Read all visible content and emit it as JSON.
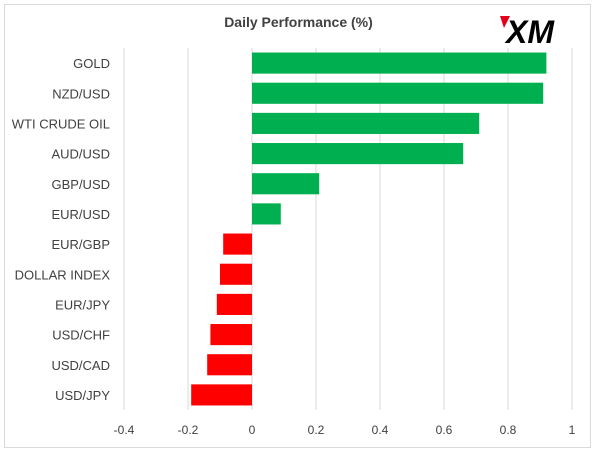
{
  "chart_data": {
    "type": "bar",
    "orientation": "horizontal",
    "title": "Daily Performance (%)",
    "categories": [
      "GOLD",
      "NZD/USD",
      "WTI CRUDE OIL",
      "AUD/USD",
      "GBP/USD",
      "EUR/USD",
      "EUR/GBP",
      "DOLLAR INDEX",
      "EUR/JPY",
      "USD/CHF",
      "USD/CAD",
      "USD/JPY"
    ],
    "values": [
      0.92,
      0.91,
      0.71,
      0.66,
      0.21,
      0.09,
      -0.09,
      -0.1,
      -0.11,
      -0.13,
      -0.14,
      -0.19
    ],
    "xlim": [
      -0.4,
      1.0
    ],
    "xticks": [
      "-0.4",
      "-0.2",
      "0",
      "0.2",
      "0.4",
      "0.6",
      "0.8",
      "1"
    ],
    "xtick_values": [
      -0.4,
      -0.2,
      0,
      0.2,
      0.4,
      0.6,
      0.8,
      1.0
    ],
    "grid": true,
    "legend": "none",
    "colors": {
      "positive": "#00b050",
      "negative": "#ff0000",
      "grid": "#d9d9d9",
      "text": "#404040"
    }
  },
  "logo": {
    "text": "XM",
    "name": "xm-logo"
  }
}
